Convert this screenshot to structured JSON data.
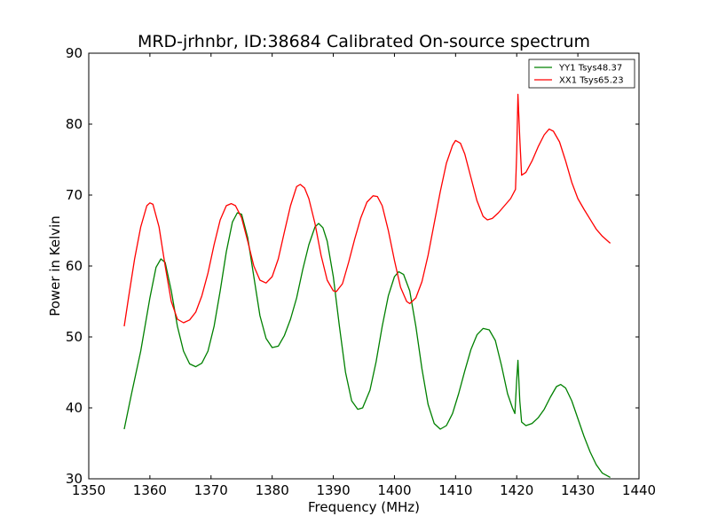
{
  "chart_data": {
    "type": "line",
    "title": "MRD-jrhnbr, ID:38684 Calibrated On-source spectrum",
    "xlabel": "Frequency (MHz)",
    "ylabel": "Power in Kelvin",
    "xlim": [
      1350,
      1440
    ],
    "ylim": [
      30,
      90
    ],
    "xticks": [
      1350,
      1360,
      1370,
      1380,
      1390,
      1400,
      1410,
      1420,
      1430,
      1440
    ],
    "yticks": [
      30,
      40,
      50,
      60,
      70,
      80,
      90
    ],
    "grid": false,
    "legend_position": "top-right",
    "series": [
      {
        "name": "YY1 Tsys48.37",
        "color": "#008000",
        "points": [
          [
            1355.8,
            37.0
          ],
          [
            1357.0,
            42.0
          ],
          [
            1358.5,
            48.0
          ],
          [
            1360.0,
            55.5
          ],
          [
            1361.0,
            59.8
          ],
          [
            1361.8,
            61.0
          ],
          [
            1362.5,
            60.5
          ],
          [
            1363.5,
            56.5
          ],
          [
            1364.5,
            51.5
          ],
          [
            1365.5,
            48.0
          ],
          [
            1366.5,
            46.2
          ],
          [
            1367.5,
            45.8
          ],
          [
            1368.5,
            46.3
          ],
          [
            1369.5,
            48.0
          ],
          [
            1370.5,
            51.5
          ],
          [
            1371.5,
            56.5
          ],
          [
            1372.5,
            62.0
          ],
          [
            1373.5,
            66.2
          ],
          [
            1374.3,
            67.5
          ],
          [
            1375.0,
            67.3
          ],
          [
            1376.0,
            64.0
          ],
          [
            1377.0,
            58.5
          ],
          [
            1378.0,
            53.0
          ],
          [
            1379.0,
            49.8
          ],
          [
            1380.0,
            48.5
          ],
          [
            1381.0,
            48.7
          ],
          [
            1382.0,
            50.2
          ],
          [
            1383.0,
            52.5
          ],
          [
            1384.0,
            55.5
          ],
          [
            1385.0,
            59.5
          ],
          [
            1386.0,
            63.0
          ],
          [
            1387.0,
            65.5
          ],
          [
            1387.6,
            66.0
          ],
          [
            1388.3,
            65.4
          ],
          [
            1389.0,
            63.5
          ],
          [
            1390.0,
            58.5
          ],
          [
            1391.0,
            51.5
          ],
          [
            1392.0,
            45.0
          ],
          [
            1393.0,
            41.0
          ],
          [
            1394.0,
            39.8
          ],
          [
            1394.8,
            40.0
          ],
          [
            1396.0,
            42.5
          ],
          [
            1397.0,
            46.5
          ],
          [
            1398.0,
            51.5
          ],
          [
            1399.0,
            55.8
          ],
          [
            1400.0,
            58.5
          ],
          [
            1400.7,
            59.2
          ],
          [
            1401.5,
            58.8
          ],
          [
            1402.5,
            56.5
          ],
          [
            1403.5,
            51.5
          ],
          [
            1404.5,
            45.5
          ],
          [
            1405.5,
            40.5
          ],
          [
            1406.5,
            37.8
          ],
          [
            1407.5,
            37.0
          ],
          [
            1408.5,
            37.5
          ],
          [
            1409.5,
            39.2
          ],
          [
            1410.5,
            42.0
          ],
          [
            1411.5,
            45.2
          ],
          [
            1412.5,
            48.2
          ],
          [
            1413.5,
            50.3
          ],
          [
            1414.5,
            51.2
          ],
          [
            1415.5,
            51.0
          ],
          [
            1416.5,
            49.5
          ],
          [
            1417.5,
            46.0
          ],
          [
            1418.5,
            42.0
          ],
          [
            1419.3,
            40.0
          ],
          [
            1419.7,
            39.2
          ],
          [
            1420.0,
            44.0
          ],
          [
            1420.2,
            46.7
          ],
          [
            1420.5,
            41.0
          ],
          [
            1420.8,
            38.0
          ],
          [
            1421.5,
            37.5
          ],
          [
            1422.5,
            37.8
          ],
          [
            1423.5,
            38.6
          ],
          [
            1424.5,
            39.8
          ],
          [
            1425.5,
            41.5
          ],
          [
            1426.5,
            43.0
          ],
          [
            1427.2,
            43.3
          ],
          [
            1428.0,
            42.8
          ],
          [
            1429.0,
            41.0
          ],
          [
            1430.0,
            38.5
          ],
          [
            1431.0,
            36.0
          ],
          [
            1432.0,
            33.8
          ],
          [
            1433.0,
            32.0
          ],
          [
            1434.0,
            30.8
          ],
          [
            1435.3,
            30.2
          ]
        ]
      },
      {
        "name": "XX1 Tsys65.23",
        "color": "#ff0000",
        "points": [
          [
            1355.8,
            51.5
          ],
          [
            1356.5,
            55.5
          ],
          [
            1357.5,
            61.0
          ],
          [
            1358.5,
            65.5
          ],
          [
            1359.5,
            68.5
          ],
          [
            1360.0,
            68.9
          ],
          [
            1360.5,
            68.7
          ],
          [
            1361.5,
            65.5
          ],
          [
            1362.5,
            60.0
          ],
          [
            1363.5,
            55.0
          ],
          [
            1364.5,
            52.5
          ],
          [
            1365.5,
            52.0
          ],
          [
            1366.5,
            52.4
          ],
          [
            1367.5,
            53.5
          ],
          [
            1368.5,
            55.8
          ],
          [
            1369.5,
            59.0
          ],
          [
            1370.5,
            63.0
          ],
          [
            1371.5,
            66.5
          ],
          [
            1372.5,
            68.5
          ],
          [
            1373.3,
            68.8
          ],
          [
            1374.0,
            68.5
          ],
          [
            1375.0,
            66.8
          ],
          [
            1376.0,
            63.5
          ],
          [
            1377.0,
            60.0
          ],
          [
            1378.0,
            58.0
          ],
          [
            1379.0,
            57.6
          ],
          [
            1380.0,
            58.5
          ],
          [
            1381.0,
            61.0
          ],
          [
            1382.0,
            64.8
          ],
          [
            1383.0,
            68.5
          ],
          [
            1384.0,
            71.2
          ],
          [
            1384.6,
            71.5
          ],
          [
            1385.3,
            71.0
          ],
          [
            1386.0,
            69.5
          ],
          [
            1387.0,
            66.0
          ],
          [
            1388.0,
            61.5
          ],
          [
            1389.0,
            58.0
          ],
          [
            1390.0,
            56.5
          ],
          [
            1390.5,
            56.4
          ],
          [
            1391.5,
            57.5
          ],
          [
            1392.5,
            60.5
          ],
          [
            1393.5,
            63.8
          ],
          [
            1394.5,
            66.8
          ],
          [
            1395.5,
            69.0
          ],
          [
            1396.5,
            69.9
          ],
          [
            1397.2,
            69.8
          ],
          [
            1398.0,
            68.5
          ],
          [
            1399.0,
            65.0
          ],
          [
            1400.0,
            60.8
          ],
          [
            1401.0,
            57.0
          ],
          [
            1402.0,
            55.0
          ],
          [
            1402.5,
            54.7
          ],
          [
            1403.5,
            55.5
          ],
          [
            1404.5,
            57.8
          ],
          [
            1405.5,
            61.5
          ],
          [
            1406.5,
            66.0
          ],
          [
            1407.5,
            70.5
          ],
          [
            1408.5,
            74.5
          ],
          [
            1409.5,
            77.0
          ],
          [
            1410.0,
            77.7
          ],
          [
            1410.8,
            77.3
          ],
          [
            1411.5,
            75.8
          ],
          [
            1412.5,
            72.5
          ],
          [
            1413.5,
            69.2
          ],
          [
            1414.5,
            67.0
          ],
          [
            1415.2,
            66.5
          ],
          [
            1416.0,
            66.7
          ],
          [
            1417.0,
            67.5
          ],
          [
            1418.0,
            68.5
          ],
          [
            1419.0,
            69.5
          ],
          [
            1419.8,
            70.8
          ],
          [
            1420.0,
            76.0
          ],
          [
            1420.2,
            84.2
          ],
          [
            1420.5,
            78.0
          ],
          [
            1420.8,
            72.8
          ],
          [
            1421.5,
            73.2
          ],
          [
            1422.5,
            74.8
          ],
          [
            1423.5,
            76.8
          ],
          [
            1424.5,
            78.5
          ],
          [
            1425.3,
            79.3
          ],
          [
            1426.0,
            79.0
          ],
          [
            1427.0,
            77.5
          ],
          [
            1428.0,
            74.8
          ],
          [
            1429.0,
            71.8
          ],
          [
            1430.0,
            69.5
          ],
          [
            1431.0,
            68.0
          ],
          [
            1432.0,
            66.6
          ],
          [
            1433.0,
            65.2
          ],
          [
            1434.0,
            64.2
          ],
          [
            1435.3,
            63.2
          ]
        ]
      }
    ]
  }
}
